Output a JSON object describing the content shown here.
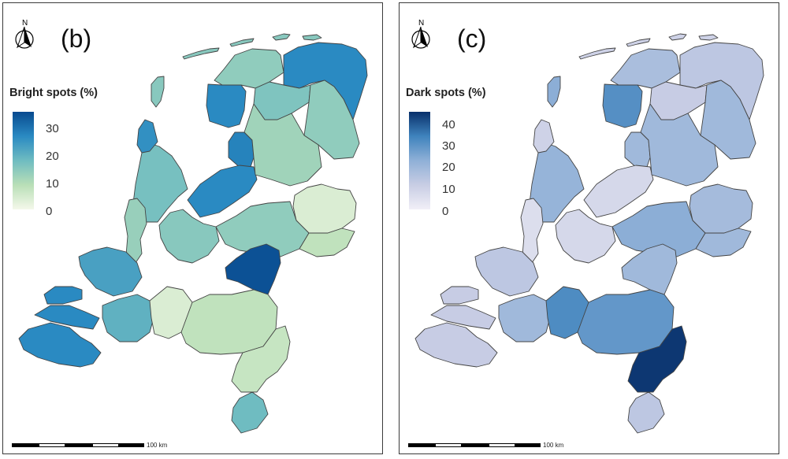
{
  "panels": [
    {
      "id": "b",
      "label": "(b)",
      "legend_title": "Bright spots (%)",
      "ticks": [
        "30",
        "20",
        "10",
        "0"
      ],
      "scale_label": "100 km",
      "north_label": "N",
      "palette": [
        "#f4f8ea",
        "#b9dfb7",
        "#6fbcc1",
        "#2a8ac2",
        "#084a8f"
      ],
      "vmax": 36,
      "regions": {
        "groningen": 27,
        "friesland": 14,
        "drenthe": 14,
        "ooststellingwerf": 16,
        "gaasterland": 27,
        "noordoostpolder": 28,
        "flevoland": 27,
        "overijssel_n": 12,
        "overijssel_s": 4,
        "nh_north": 17,
        "nh_south": 26,
        "utrecht": 15,
        "gelderland_c": 14,
        "gelderland_e": 8,
        "nijmegen": 35,
        "zh_north": 13,
        "zh_south": 23,
        "zeeland": 27,
        "nb_west": 20,
        "nb_mid": 4,
        "nb_east": 8,
        "limburg_n": 7,
        "limburg_s": 18,
        "texel": 15,
        "islands": 15
      }
    },
    {
      "id": "c",
      "label": "(c)",
      "legend_title": "Dark spots (%)",
      "ticks": [
        "40",
        "30",
        "20",
        "10",
        "0"
      ],
      "scale_label": "100 km",
      "north_label": "N",
      "palette": [
        "#f1eff7",
        "#c8cde4",
        "#8fb0d7",
        "#3f83bd",
        "#08306b"
      ],
      "vmax": 47,
      "regions": {
        "groningen": 14,
        "friesland": 18,
        "drenthe": 20,
        "ooststellingwerf": 12,
        "gaasterland": 32,
        "noordoostpolder": 20,
        "flevoland": 8,
        "overijssel_n": 20,
        "overijssel_s": 19,
        "nh_north": 22,
        "nh_south": 10,
        "utrecht": 8,
        "gelderland_c": 24,
        "gelderland_e": 20,
        "nijmegen": 20,
        "zh_north": 6,
        "zh_south": 14,
        "zeeland": 12,
        "nb_west": 20,
        "nb_mid": 33,
        "nb_east": 30,
        "limburg_n": 46,
        "limburg_s": 14,
        "texel": 24,
        "islands": 10
      }
    }
  ]
}
